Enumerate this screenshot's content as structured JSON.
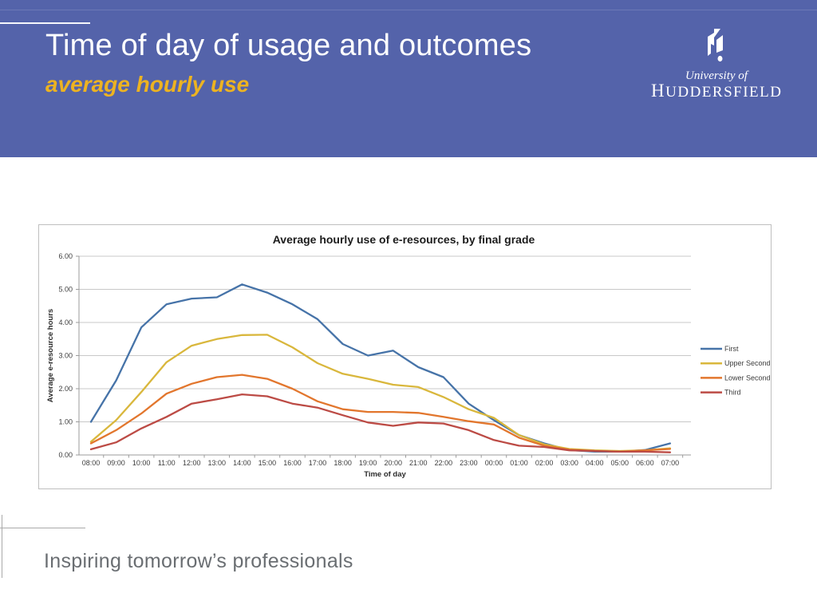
{
  "header": {
    "title": "Time of day of usage and outcomes",
    "subtitle": "average hourly use",
    "logo": {
      "university_of": "University of",
      "name": "HUDDERSFIELD"
    }
  },
  "footer": {
    "tagline": "Inspiring tomorrow’s professionals"
  },
  "colors": {
    "header_band": "#5463aa",
    "subtitle_accent": "#edb321",
    "chart_border": "#bfbfbf",
    "gridline": "#c8c8c8",
    "axis": "#9b9b9b",
    "footer_text": "#6a6e72"
  },
  "chart_data": {
    "type": "line",
    "title": "Average hourly use of e-resources, by final grade",
    "xlabel": "Time of day",
    "ylabel": "Average e-resource hours",
    "ylim": [
      0,
      6
    ],
    "ytick_labels": [
      "0.00",
      "1.00",
      "2.00",
      "3.00",
      "4.00",
      "5.00",
      "6.00"
    ],
    "grid": "horizontal",
    "legend_position": "right",
    "categories": [
      "08:00",
      "09:00",
      "10:00",
      "11:00",
      "12:00",
      "13:00",
      "14:00",
      "15:00",
      "16:00",
      "17:00",
      "18:00",
      "19:00",
      "20:00",
      "21:00",
      "22:00",
      "23:00",
      "00:00",
      "01:00",
      "02:00",
      "03:00",
      "04:00",
      "05:00",
      "06:00",
      "07:00"
    ],
    "series": [
      {
        "name": "First",
        "color": "#4673a8",
        "values": [
          1.0,
          2.25,
          3.85,
          4.55,
          4.72,
          4.76,
          5.15,
          4.9,
          4.55,
          4.1,
          3.35,
          3.0,
          3.15,
          2.65,
          2.35,
          1.55,
          1.05,
          0.6,
          0.35,
          0.15,
          0.1,
          0.1,
          0.15,
          0.35
        ]
      },
      {
        "name": "Upper Second",
        "color": "#d9b73c",
        "values": [
          0.4,
          1.05,
          1.9,
          2.8,
          3.3,
          3.5,
          3.62,
          3.63,
          3.25,
          2.77,
          2.45,
          2.3,
          2.12,
          2.05,
          1.75,
          1.38,
          1.12,
          0.6,
          0.32,
          0.18,
          0.14,
          0.12,
          0.14,
          0.2
        ]
      },
      {
        "name": "Lower Second",
        "color": "#e2762d",
        "values": [
          0.35,
          0.75,
          1.25,
          1.85,
          2.15,
          2.35,
          2.42,
          2.3,
          2.0,
          1.62,
          1.38,
          1.3,
          1.3,
          1.27,
          1.15,
          1.02,
          0.92,
          0.52,
          0.28,
          0.16,
          0.12,
          0.1,
          0.14,
          0.18
        ]
      },
      {
        "name": "Third",
        "color": "#bc4b45",
        "values": [
          0.17,
          0.38,
          0.8,
          1.15,
          1.55,
          1.68,
          1.83,
          1.77,
          1.55,
          1.43,
          1.2,
          0.98,
          0.88,
          0.98,
          0.95,
          0.75,
          0.45,
          0.28,
          0.24,
          0.14,
          0.12,
          0.1,
          0.1,
          0.08
        ]
      }
    ]
  }
}
